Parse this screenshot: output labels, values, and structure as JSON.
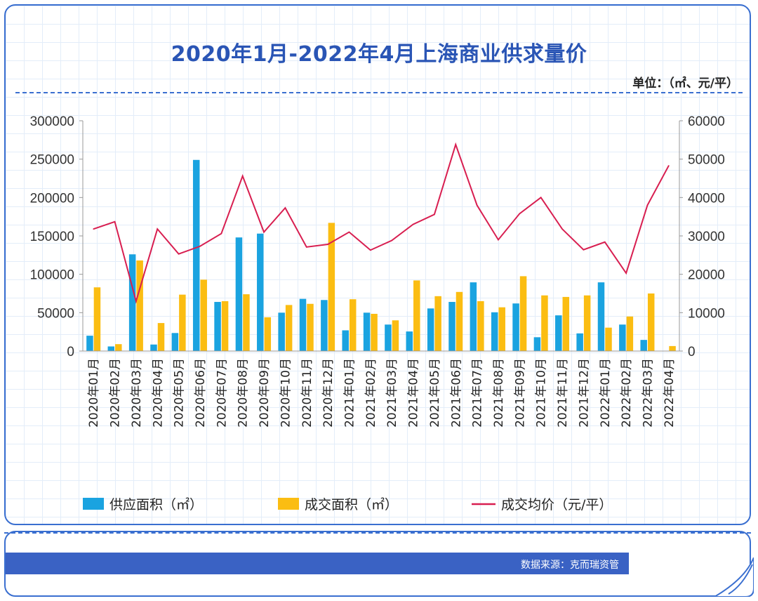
{
  "title": "2020年1月-2022年4月上海商业供求量价",
  "unit_label": "单位：（㎡、元/平）",
  "source": "数据来源：克而瑞资管",
  "colors": {
    "supply": "#1aa3e0",
    "deal": "#fbbd12",
    "price": "#d81e50",
    "frame": "#3a6fd0",
    "title": "#2a55b5"
  },
  "chart_data": {
    "type": "bar",
    "categories": [
      "2020年01月",
      "2020年02月",
      "2020年03月",
      "2020年04月",
      "2020年05月",
      "2020年06月",
      "2020年07月",
      "2020年08月",
      "2020年09月",
      "2020年10月",
      "2020年11月",
      "2020年12月",
      "2021年01月",
      "2021年02月",
      "2021年03月",
      "2021年04月",
      "2021年05月",
      "2021年06月",
      "2021年07月",
      "2021年08月",
      "2021年09月",
      "2021年10月",
      "2021年11月",
      "2021年12月",
      "2022年01月",
      "2022年02月",
      "2022年03月",
      "2022年04月"
    ],
    "series": [
      {
        "name": "供应面积（㎡）",
        "type": "bar",
        "axis": "left",
        "values": [
          20000,
          6000,
          126000,
          8500,
          23500,
          249000,
          64000,
          148000,
          153000,
          50000,
          68000,
          66500,
          27000,
          50000,
          34500,
          25500,
          55500,
          64000,
          89500,
          50500,
          62000,
          18000,
          46500,
          23000,
          89500,
          34500,
          14500,
          0
        ]
      },
      {
        "name": "成交面积（㎡）",
        "type": "bar",
        "axis": "left",
        "values": [
          83000,
          9000,
          118000,
          36500,
          73500,
          93000,
          65000,
          74000,
          44000,
          60000,
          61500,
          167000,
          67500,
          48500,
          40000,
          92000,
          71500,
          77000,
          65000,
          57000,
          97500,
          72500,
          70500,
          72500,
          30500,
          45000,
          75000,
          6500
        ]
      },
      {
        "name": "成交均价（元/平）",
        "type": "line",
        "axis": "right",
        "values": [
          31800,
          33700,
          13000,
          31800,
          25300,
          27300,
          30600,
          45600,
          31000,
          37300,
          27100,
          27800,
          31000,
          26300,
          28800,
          33000,
          35600,
          53800,
          38000,
          29000,
          35800,
          40000,
          31800,
          26400,
          28400,
          20300,
          38000,
          48300
        ]
      }
    ],
    "y_left": {
      "min": 0,
      "max": 300000,
      "ticks": [
        0,
        50000,
        100000,
        150000,
        200000,
        250000,
        300000
      ]
    },
    "y_right": {
      "min": 0,
      "max": 60000,
      "ticks": [
        0,
        10000,
        20000,
        30000,
        40000,
        50000,
        60000
      ]
    },
    "legend_position": "bottom"
  }
}
